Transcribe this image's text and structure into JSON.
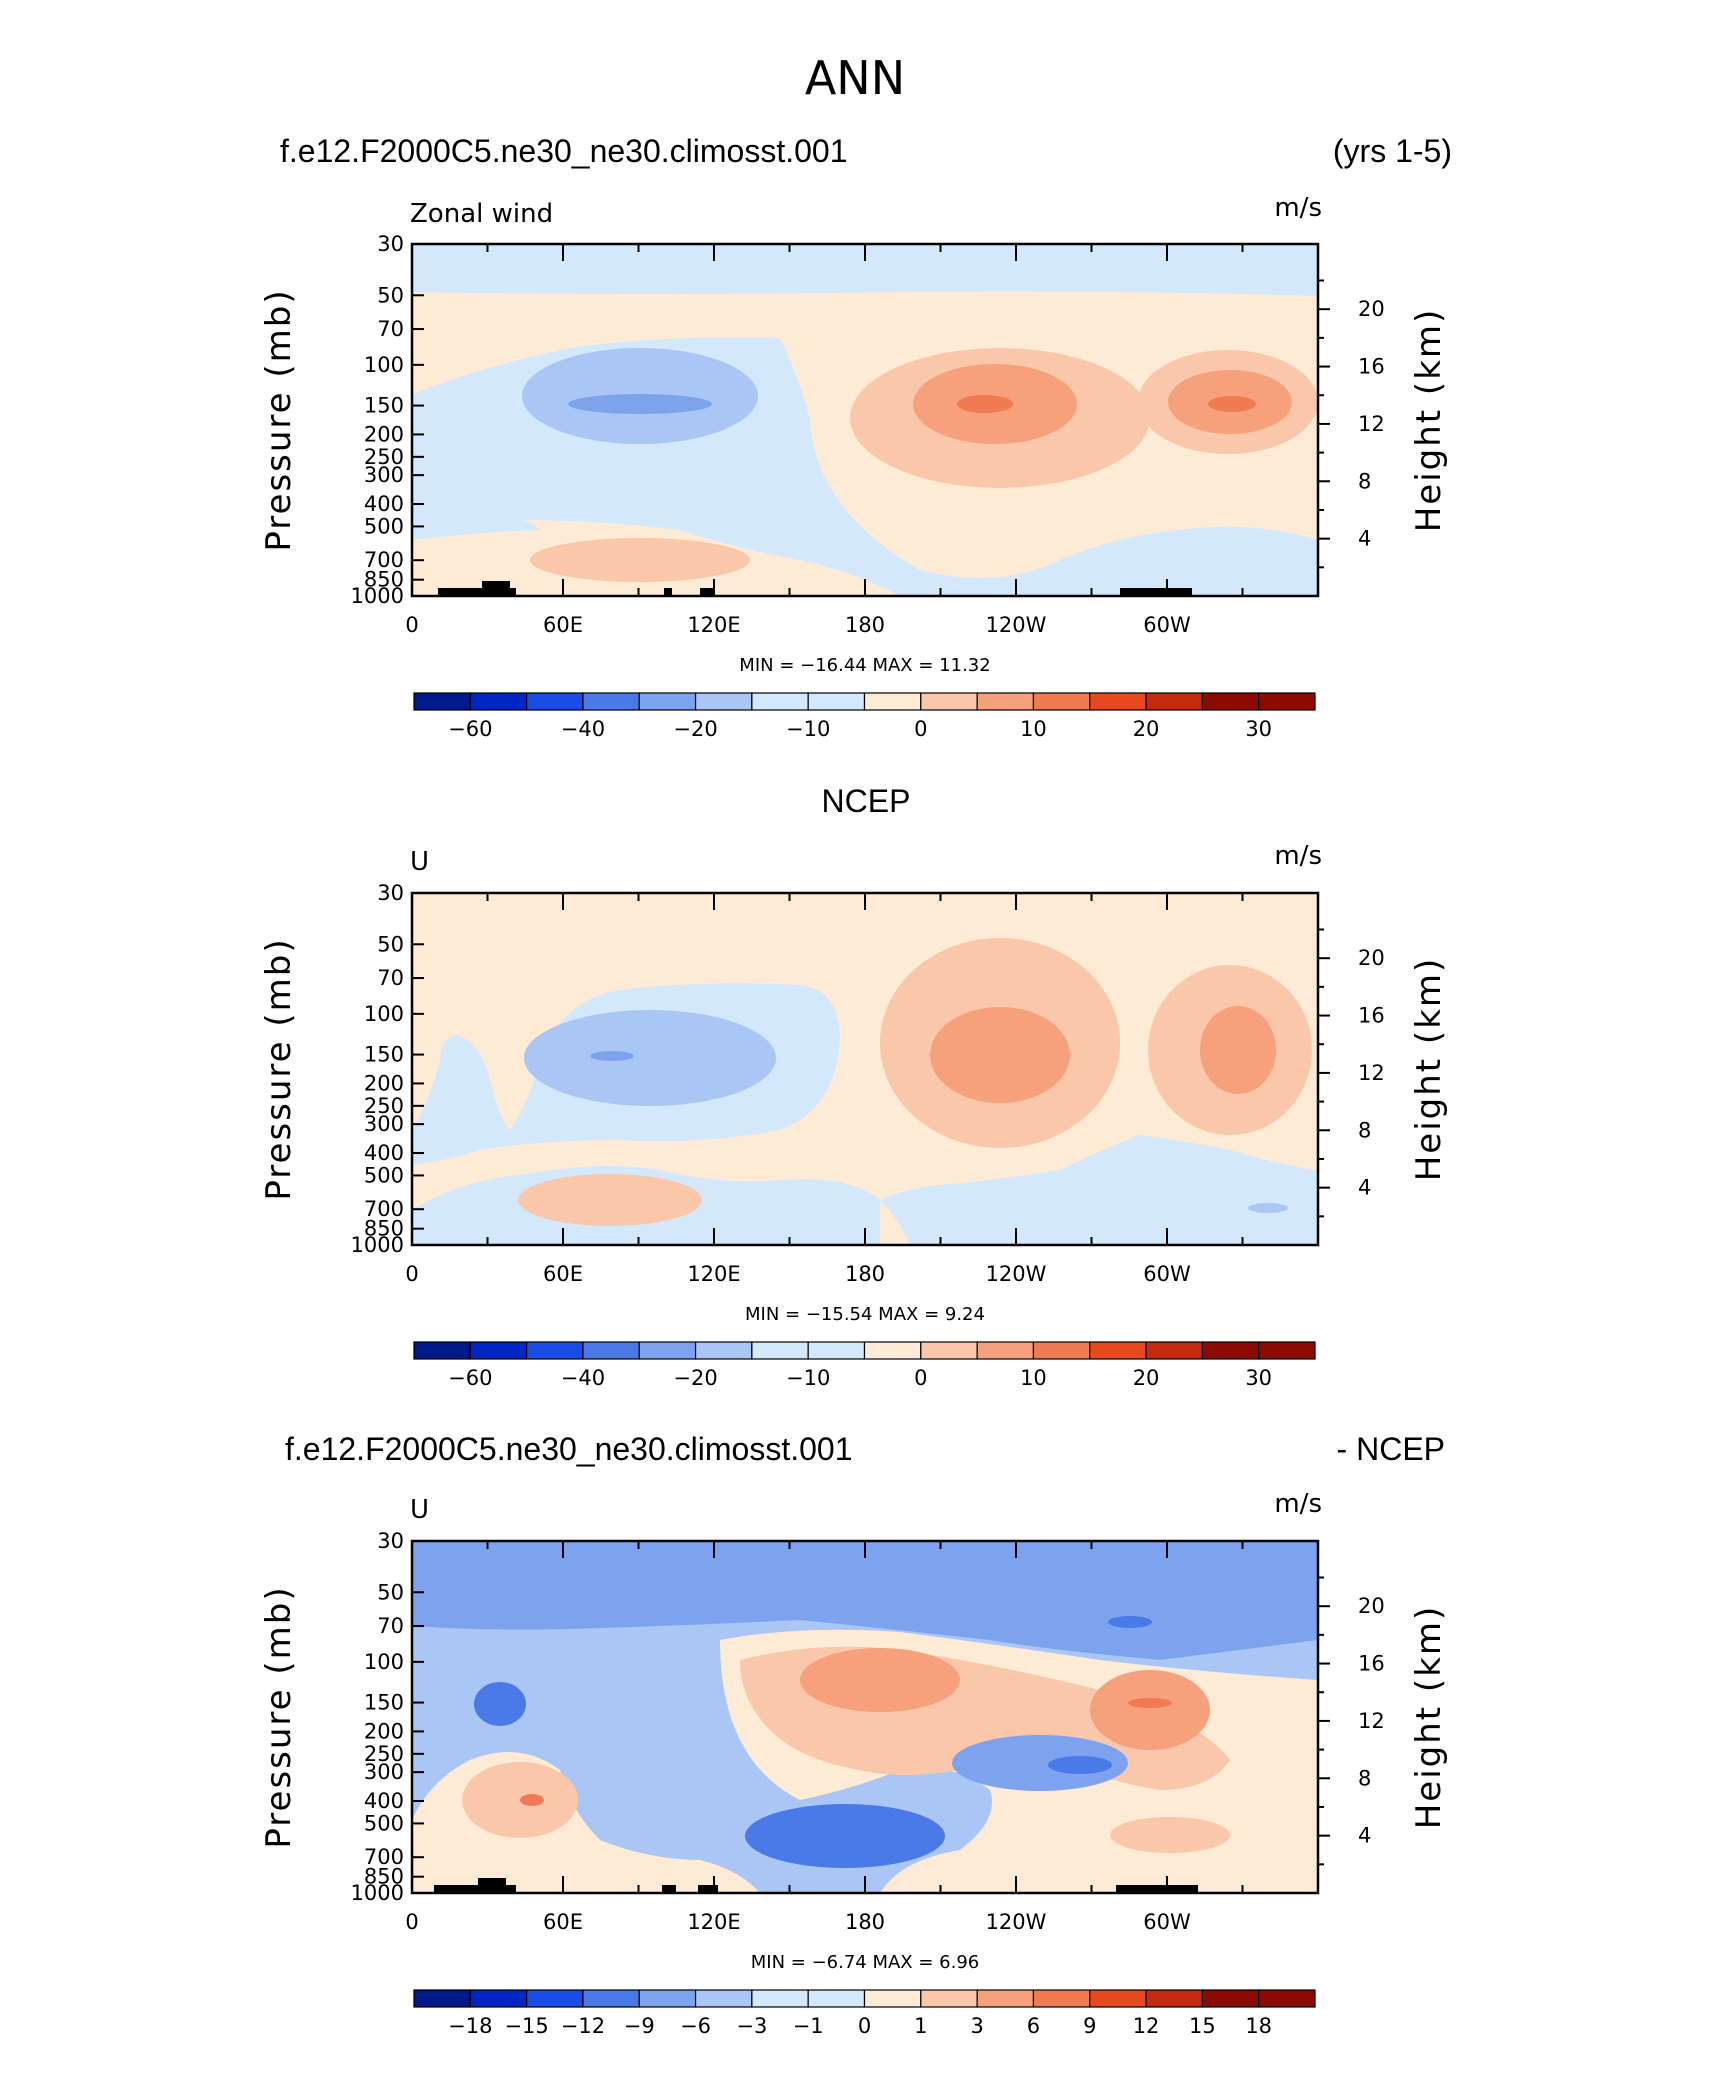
{
  "title": "ANN",
  "colors": {
    "blue": [
      "#001a8c",
      "#0026c4",
      "#1a4de6",
      "#4a7ae8",
      "#7ea3ee",
      "#aac6f5",
      "#d4e8fb"
    ],
    "red": [
      "#fdebd6",
      "#fbc7aa",
      "#f6a07c",
      "#f07a52",
      "#e8481e",
      "#c42a10",
      "#8c0a02"
    ],
    "land": "#000000",
    "frame": "#000000"
  },
  "panels": [
    {
      "id": "model",
      "left_title": "f.e12.F2000C5.ne30_ne30.climosst.001",
      "right_title": "(yrs 1-5)",
      "var_label": "Zonal wind",
      "units": "m/s",
      "y_label": "Pressure (mb)",
      "y2_label": "Height (km)",
      "minmax": "MIN = −16.44   MAX =   11.32",
      "colorbar_labels": [
        "−60",
        "−40",
        "−20",
        "−10",
        "0",
        "10",
        "20",
        "30"
      ]
    },
    {
      "id": "ncep",
      "center_title": "NCEP",
      "var_label": "U",
      "units": "m/s",
      "y_label": "Pressure (mb)",
      "y2_label": "Height (km)",
      "minmax": "MIN = −15.54   MAX =    9.24",
      "colorbar_labels": [
        "−60",
        "−40",
        "−20",
        "−10",
        "0",
        "10",
        "20",
        "30"
      ]
    },
    {
      "id": "diff",
      "left_title": "f.e12.F2000C5.ne30_ne30.climosst.001",
      "right_title": "- NCEP",
      "var_label": "U",
      "units": "m/s",
      "y_label": "Pressure (mb)",
      "y2_label": "Height (km)",
      "minmax": "MIN =    −6.74   MAX =    6.96",
      "colorbar_labels": [
        "−18",
        "−15",
        "−12",
        "−9",
        "−6",
        "−3",
        "−1",
        "0",
        "1",
        "3",
        "6",
        "9",
        "12",
        "15",
        "18"
      ]
    }
  ],
  "chart_data": [
    {
      "type": "heatmap",
      "panel": "model",
      "title": "f.e12.F2000C5.ne30_ne30.climosst.001 (yrs 1-5)",
      "variable": "Zonal wind",
      "units": "m/s",
      "x_ticks": [
        "0",
        "60E",
        "120E",
        "180",
        "120W",
        "60W"
      ],
      "x_range_lon": [
        0,
        360
      ],
      "y_ticks_pressure": [
        "30",
        "50",
        "70",
        "100",
        "150",
        "200",
        "250",
        "300",
        "400",
        "500",
        "700",
        "850",
        "1000"
      ],
      "y_ticks_height": [
        "20",
        "16",
        "12",
        "8",
        "4"
      ],
      "contour_levels": [
        -70,
        -60,
        -50,
        -40,
        -30,
        -20,
        -15,
        -10,
        -5,
        0,
        5,
        10,
        15,
        20,
        25,
        30,
        40
      ],
      "min": -16.44,
      "max": 11.32
    },
    {
      "type": "heatmap",
      "panel": "ncep",
      "title": "NCEP",
      "variable": "U",
      "units": "m/s",
      "x_ticks": [
        "0",
        "60E",
        "120E",
        "180",
        "120W",
        "60W"
      ],
      "x_range_lon": [
        0,
        360
      ],
      "y_ticks_pressure": [
        "30",
        "50",
        "70",
        "100",
        "150",
        "200",
        "250",
        "300",
        "400",
        "500",
        "700",
        "850",
        "1000"
      ],
      "y_ticks_height": [
        "20",
        "16",
        "12",
        "8",
        "4"
      ],
      "min": -15.54,
      "max": 9.24
    },
    {
      "type": "heatmap",
      "panel": "diff",
      "title": "f.e12.F2000C5.ne30_ne30.climosst.001 - NCEP",
      "variable": "U",
      "units": "m/s",
      "x_ticks": [
        "0",
        "60E",
        "120E",
        "180",
        "120W",
        "60W"
      ],
      "x_range_lon": [
        0,
        360
      ],
      "y_ticks_pressure": [
        "30",
        "50",
        "70",
        "100",
        "150",
        "200",
        "250",
        "300",
        "400",
        "500",
        "700",
        "850",
        "1000"
      ],
      "y_ticks_height": [
        "20",
        "16",
        "12",
        "8",
        "4"
      ],
      "min": -6.74,
      "max": 6.96
    }
  ]
}
